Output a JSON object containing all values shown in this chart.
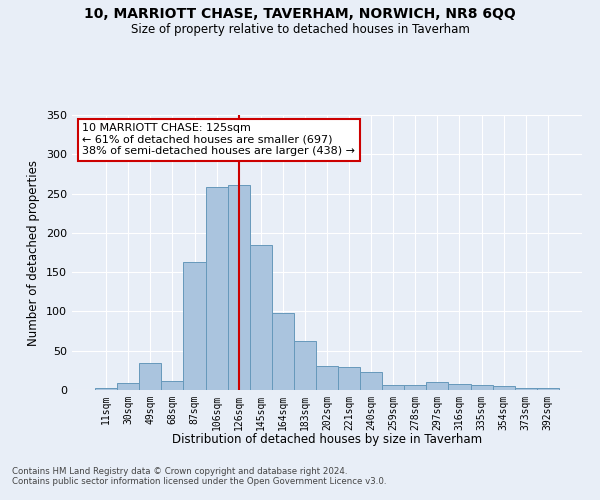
{
  "title": "10, MARRIOTT CHASE, TAVERHAM, NORWICH, NR8 6QQ",
  "subtitle": "Size of property relative to detached houses in Taverham",
  "xlabel": "Distribution of detached houses by size in Taverham",
  "ylabel": "Number of detached properties",
  "bar_values": [
    2,
    9,
    35,
    12,
    163,
    258,
    261,
    185,
    98,
    62,
    30,
    29,
    23,
    6,
    6,
    10,
    8,
    7,
    5,
    3,
    2
  ],
  "bin_labels": [
    "11sqm",
    "30sqm",
    "49sqm",
    "68sqm",
    "87sqm",
    "106sqm",
    "126sqm",
    "145sqm",
    "164sqm",
    "183sqm",
    "202sqm",
    "221sqm",
    "240sqm",
    "259sqm",
    "278sqm",
    "297sqm",
    "316sqm",
    "335sqm",
    "354sqm",
    "373sqm",
    "392sqm"
  ],
  "bar_color": "#aac4de",
  "bar_edge_color": "#6699bb",
  "highlight_bar_index": 6,
  "annotation_text": "10 MARRIOTT CHASE: 125sqm\n← 61% of detached houses are smaller (697)\n38% of semi-detached houses are larger (438) →",
  "annotation_box_color": "#ffffff",
  "annotation_box_edge_color": "#cc0000",
  "vline_color": "#cc0000",
  "background_color": "#e8eef7",
  "grid_color": "#ffffff",
  "ylim": [
    0,
    350
  ],
  "yticks": [
    0,
    50,
    100,
    150,
    200,
    250,
    300,
    350
  ],
  "footer_line1": "Contains HM Land Registry data © Crown copyright and database right 2024.",
  "footer_line2": "Contains public sector information licensed under the Open Government Licence v3.0."
}
